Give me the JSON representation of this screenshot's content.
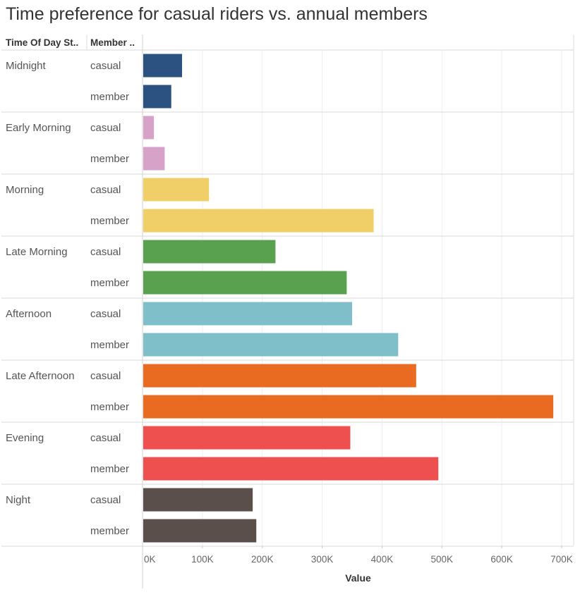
{
  "chart_data": {
    "type": "bar",
    "orientation": "horizontal",
    "title": "Time preference for casual riders vs. annual members",
    "row_headers": [
      "Time Of Day St..",
      "Member .."
    ],
    "categories": [
      "Midnight",
      "Early Morning",
      "Morning",
      "Late Morning",
      "Afternoon",
      "Late Afternoon",
      "Evening",
      "Night"
    ],
    "sub_categories": [
      "casual",
      "member"
    ],
    "series": [
      {
        "name": "casual",
        "values": [
          66000,
          19000,
          111000,
          222000,
          350000,
          457000,
          347000,
          184000
        ]
      },
      {
        "name": "member",
        "values": [
          48000,
          37000,
          386000,
          341000,
          427000,
          686000,
          494000,
          190000
        ]
      }
    ],
    "colors": [
      "#2c5282",
      "#d7a2c8",
      "#f1cf68",
      "#59a14f",
      "#7fbfc9",
      "#e86b21",
      "#ee5050",
      "#5a4f4b"
    ],
    "xlabel": "Value",
    "xlim": [
      0,
      720000
    ],
    "xticks": [
      0,
      100000,
      200000,
      300000,
      400000,
      500000,
      600000,
      700000
    ],
    "xtick_labels": [
      "0K",
      "100K",
      "200K",
      "300K",
      "400K",
      "500K",
      "600K",
      "700K"
    ],
    "grid": true
  }
}
